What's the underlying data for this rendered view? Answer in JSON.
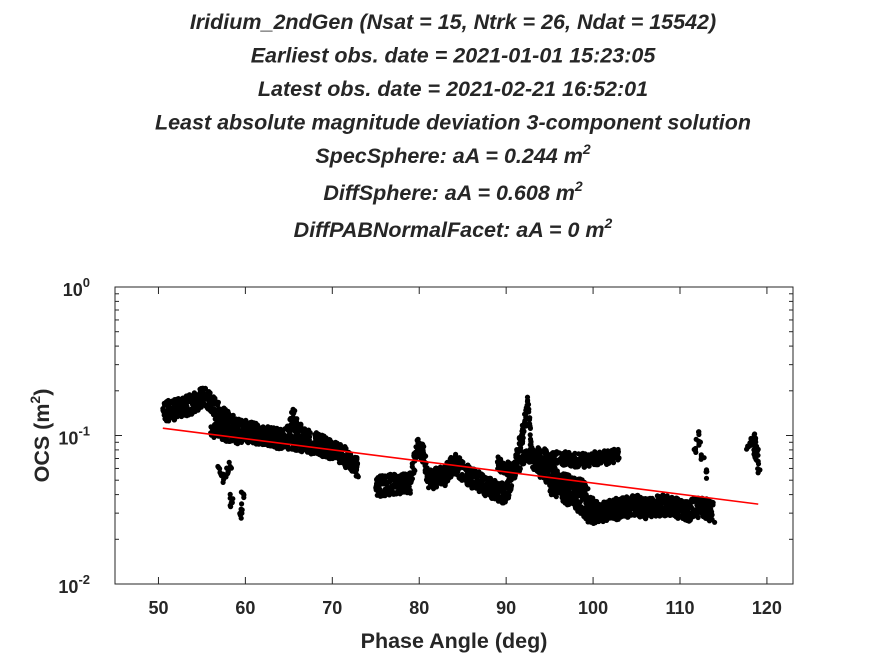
{
  "chart_data": {
    "type": "scatter",
    "title_lines": [
      "Iridium_2ndGen (Nsat = 15, Ntrk = 26, Ndat = 15542)",
      "Earliest obs. date = 2021-01-01 15:23:05",
      "Latest   obs. date = 2021-02-21 16:52:01",
      "Least absolute magnitude deviation 3-component solution"
    ],
    "components": [
      {
        "label": "SpecSphere: aA = 0.244 m",
        "sup": "2"
      },
      {
        "label": "DiffSphere: aA = 0.608 m",
        "sup": "2"
      },
      {
        "label": "DiffPABNormalFacet: aA = 0 m",
        "sup": "2"
      }
    ],
    "xlabel": "Phase Angle (deg)",
    "ylabel": {
      "text": "OCS (m",
      "sup": "2",
      "close": ")"
    },
    "xlim": [
      45,
      123
    ],
    "ylim": [
      0.01,
      1
    ],
    "yscale": "log",
    "xticks": [
      50,
      60,
      70,
      80,
      90,
      100,
      110,
      120
    ],
    "yticks": [
      {
        "value": 0.01,
        "base": "10",
        "exp": "-2"
      },
      {
        "value": 0.1,
        "base": "10",
        "exp": "-1"
      },
      {
        "value": 1,
        "base": "10",
        "exp": "0"
      }
    ],
    "grid": false,
    "colors": {
      "points": "#000000",
      "fit": "#ff0000",
      "axes": "#262626"
    },
    "observations_profile": {
      "description_units": "phase angle (deg) vs OCS (m^2) median of dense point cloud",
      "x": [
        50.5,
        51.5,
        52.5,
        53.5,
        54.5,
        55.3,
        56,
        57,
        58,
        59,
        59.8,
        61,
        62,
        63,
        64,
        65,
        65.5,
        66,
        67,
        68,
        69,
        70,
        71,
        72,
        73,
        75,
        76,
        77,
        78,
        79,
        79.8,
        80.5,
        81,
        82,
        83,
        84,
        85,
        86,
        87,
        88,
        89,
        90,
        91,
        92,
        92.5,
        93,
        94,
        95,
        96,
        97,
        98,
        99,
        100,
        101,
        102,
        103,
        104,
        105,
        106,
        107,
        108,
        109,
        110,
        111,
        112,
        113,
        114,
        118.5,
        119
      ],
      "y": [
        0.145,
        0.148,
        0.152,
        0.16,
        0.17,
        0.19,
        0.165,
        0.14,
        0.125,
        0.115,
        0.11,
        0.105,
        0.1,
        0.098,
        0.095,
        0.1,
        0.14,
        0.11,
        0.095,
        0.09,
        0.085,
        0.08,
        0.075,
        0.068,
        0.06,
        0.045,
        0.046,
        0.047,
        0.047,
        0.048,
        0.085,
        0.075,
        0.05,
        0.052,
        0.054,
        0.065,
        0.058,
        0.052,
        0.048,
        0.045,
        0.042,
        0.04,
        0.06,
        0.11,
        0.16,
        0.07,
        0.06,
        0.055,
        0.05,
        0.047,
        0.045,
        0.042,
        0.032,
        0.03,
        0.032,
        0.033,
        0.033,
        0.034,
        0.032,
        0.033,
        0.034,
        0.033,
        0.032,
        0.031,
        0.033,
        0.032,
        0.03,
        0.085,
        0.075
      ]
    },
    "secondary_branches": [
      {
        "x": [
          56,
          57,
          58,
          59,
          60,
          61,
          62,
          63,
          64,
          65,
          66,
          67,
          68,
          69,
          70,
          71
        ],
        "y": [
          0.11,
          0.105,
          0.1,
          0.098,
          0.1,
          0.098,
          0.096,
          0.095,
          0.093,
          0.09,
          0.088,
          0.085,
          0.083,
          0.08,
          0.078,
          0.075
        ]
      },
      {
        "x": [
          89,
          90,
          91,
          92,
          93,
          94,
          95,
          96,
          97,
          98,
          99,
          100,
          101,
          102,
          103
        ],
        "y": [
          0.065,
          0.06,
          0.058,
          0.07,
          0.075,
          0.074,
          0.072,
          0.07,
          0.07,
          0.068,
          0.068,
          0.07,
          0.07,
          0.072,
          0.075
        ]
      },
      {
        "x": [
          95,
          96,
          97,
          98,
          99,
          100,
          101,
          102,
          103
        ],
        "y": [
          0.045,
          0.042,
          0.038,
          0.035,
          0.03,
          0.028,
          0.03,
          0.031,
          0.03
        ]
      }
    ],
    "isolated_features": [
      {
        "x": [
          57,
          57.3,
          57.6,
          58,
          58.3
        ],
        "y": [
          0.06,
          0.055,
          0.052,
          0.058,
          0.065
        ]
      },
      {
        "x": [
          59.5,
          59.6,
          59.7
        ],
        "y": [
          0.028,
          0.033,
          0.04
        ]
      },
      {
        "x": [
          58.3,
          58.4
        ],
        "y": [
          0.038,
          0.035
        ]
      },
      {
        "x": [
          111.8,
          112,
          112.3,
          112.6,
          113
        ],
        "y": [
          0.08,
          0.1,
          0.09,
          0.07,
          0.055
        ]
      },
      {
        "x": [
          117.8,
          118.2,
          118.7,
          119.1
        ],
        "y": [
          0.08,
          0.09,
          0.095,
          0.06
        ]
      }
    ],
    "fit_line": {
      "x": [
        50.5,
        119
      ],
      "y": [
        0.112,
        0.0345
      ]
    }
  }
}
